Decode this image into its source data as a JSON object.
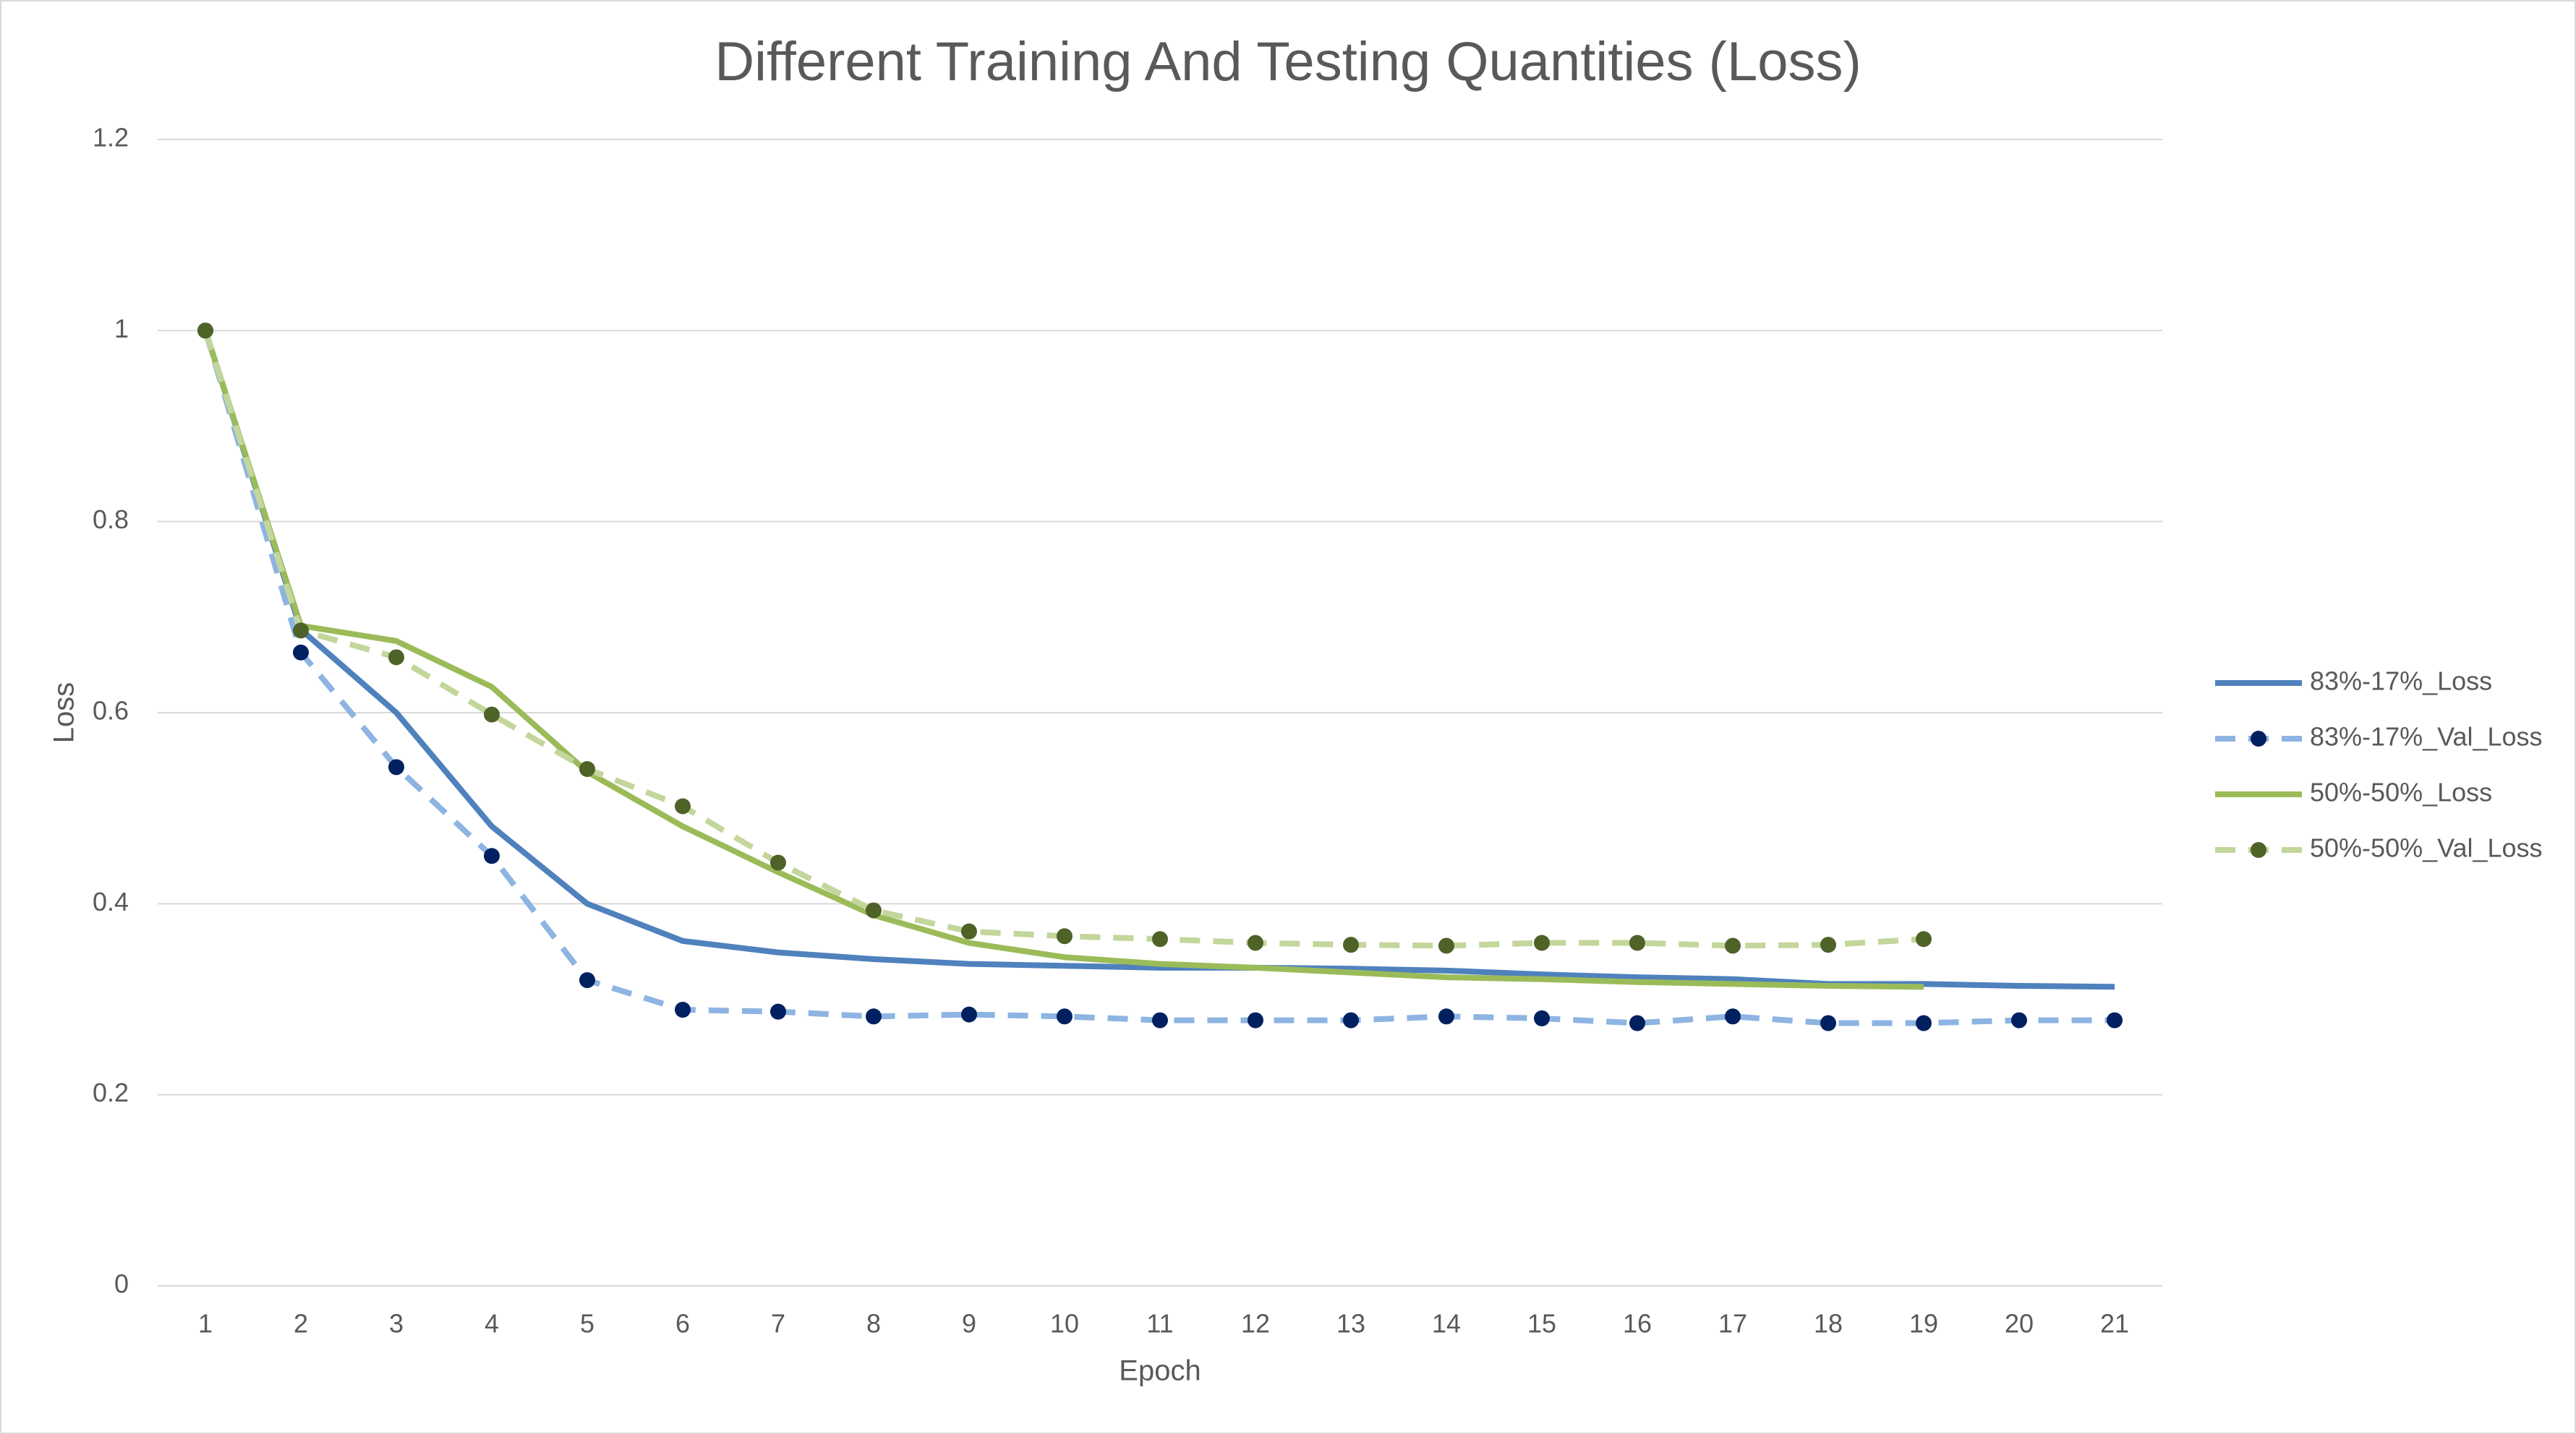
{
  "chart_data": {
    "type": "line",
    "title": "Different Training And Testing Quantities (Loss)",
    "x_label": "Epoch",
    "y_label": "Loss",
    "categories": [
      "1",
      "2",
      "3",
      "4",
      "5",
      "6",
      "7",
      "8",
      "9",
      "10",
      "11",
      "12",
      "13",
      "14",
      "15",
      "16",
      "17",
      "18",
      "19",
      "20",
      "21"
    ],
    "ylim": [
      0,
      1.2
    ],
    "yticks": [
      0,
      0.2,
      0.4,
      0.6,
      0.8,
      1,
      1.2
    ],
    "grid": true,
    "legend": "right",
    "series": [
      {
        "name": "83%-17%_Loss",
        "color": "#4f81bd",
        "dashed": false,
        "values": [
          1.0,
          0.687,
          0.6,
          0.481,
          0.4,
          0.361,
          0.349,
          0.342,
          0.337,
          0.335,
          0.333,
          0.333,
          0.332,
          0.33,
          0.326,
          0.323,
          0.321,
          0.316,
          0.316,
          0.314,
          0.313
        ]
      },
      {
        "name": "83%-17%_Val_Loss",
        "color": "#8db4e2",
        "marker_color": "#002060",
        "dashed": true,
        "values": [
          1.0,
          0.663,
          0.543,
          0.45,
          0.32,
          0.289,
          0.287,
          0.282,
          0.284,
          0.282,
          0.278,
          0.278,
          0.278,
          0.282,
          0.28,
          0.275,
          0.282,
          0.275,
          0.275,
          0.278,
          0.278
        ]
      },
      {
        "name": "50%-50%_Loss",
        "color": "#9bbb59",
        "dashed": false,
        "values": [
          1.0,
          0.691,
          0.675,
          0.627,
          0.538,
          0.481,
          0.433,
          0.388,
          0.359,
          0.344,
          0.337,
          0.333,
          0.328,
          0.323,
          0.321,
          0.318,
          0.316,
          0.314,
          0.313,
          null,
          null
        ]
      },
      {
        "name": "50%-50%_Val_Loss",
        "color": "#c3d69b",
        "marker_color": "#4f6228",
        "dashed": true,
        "values": [
          1.0,
          0.686,
          0.658,
          0.598,
          0.541,
          0.502,
          0.443,
          0.393,
          0.371,
          0.366,
          0.363,
          0.359,
          0.357,
          0.356,
          0.359,
          0.359,
          0.356,
          0.357,
          0.363,
          null,
          null
        ]
      }
    ]
  }
}
